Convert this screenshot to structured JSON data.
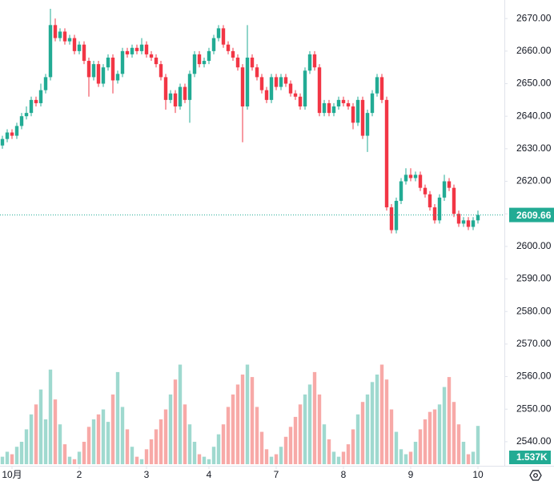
{
  "chart_data": {
    "type": "candlestick",
    "xlim": [
      -0.5,
      104.5
    ],
    "ylim": [
      2532.6,
      2675.7
    ],
    "yticks": [
      {
        "value": 2670,
        "label": "2670.00"
      },
      {
        "value": 2660,
        "label": "2660.00"
      },
      {
        "value": 2650,
        "label": "2650.00"
      },
      {
        "value": 2640,
        "label": "2640.00"
      },
      {
        "value": 2630,
        "label": "2630.00"
      },
      {
        "value": 2620,
        "label": "2620.00"
      },
      {
        "value": 2610,
        "label": "2610.00"
      },
      {
        "value": 2600,
        "label": "2600.00"
      },
      {
        "value": 2590,
        "label": "2590.00"
      },
      {
        "value": 2580,
        "label": "2580.00"
      },
      {
        "value": 2570,
        "label": "2570.00"
      },
      {
        "value": 2560,
        "label": "2560.00"
      },
      {
        "value": 2550,
        "label": "2550.00"
      },
      {
        "value": 2540,
        "label": "2540.00"
      }
    ],
    "xticks": [
      {
        "value": 2,
        "label": "10月"
      },
      {
        "value": 16,
        "label": "2"
      },
      {
        "value": 30,
        "label": "3"
      },
      {
        "value": 43,
        "label": "4"
      },
      {
        "value": 57,
        "label": "7"
      },
      {
        "value": 71,
        "label": "8"
      },
      {
        "value": 85,
        "label": "9"
      },
      {
        "value": 99,
        "label": "10"
      }
    ],
    "grid": false,
    "up_color": "#22ab94",
    "down_color": "#f23645",
    "up_volume_color": "#9fd9cf",
    "down_volume_color": "#f7a9a7",
    "open": [
      2631,
      2633,
      2635,
      2634,
      2637,
      2640,
      2641,
      2645,
      2644,
      2648,
      2652,
      2668,
      2664,
      2666,
      2663,
      2664,
      2660,
      2662,
      2657,
      2652,
      2656,
      2650,
      2655,
      2658,
      2651,
      2653,
      2660,
      2659,
      2661,
      2660,
      2662,
      2659,
      2658,
      2656,
      2652,
      2645,
      2647,
      2643,
      2649,
      2645,
      2653,
      2659,
      2656,
      2657,
      2660,
      2664,
      2667,
      2662,
      2660,
      2658,
      2655,
      2643,
      2658,
      2655,
      2652,
      2648,
      2645,
      2652,
      2649,
      2652,
      2650,
      2647,
      2646,
      2643,
      2654,
      2659,
      2655,
      2641,
      2644,
      2641,
      2643,
      2645,
      2644,
      2643,
      2638,
      2645,
      2634,
      2641,
      2647,
      2652,
      2645,
      2612,
      2605,
      2614,
      2620,
      2622,
      2621,
      2622,
      2618,
      2616,
      2612,
      2608,
      2615,
      2620,
      2618,
      2610,
      2607,
      2608,
      2606,
      2608
    ],
    "high": [
      2634,
      2636,
      2636,
      2638,
      2641,
      2643,
      2646,
      2646,
      2650,
      2653,
      2673,
      2670,
      2667,
      2667,
      2665,
      2665,
      2663,
      2663,
      2658,
      2657,
      2657,
      2656,
      2659,
      2659,
      2654,
      2661,
      2661,
      2662,
      2662,
      2664,
      2663,
      2660,
      2659,
      2657,
      2653,
      2648,
      2648,
      2650,
      2650,
      2654,
      2660,
      2660,
      2658,
      2661,
      2665,
      2668,
      2668,
      2663,
      2661,
      2659,
      2656,
      2668,
      2659,
      2656,
      2653,
      2649,
      2653,
      2653,
      2653,
      2653,
      2651,
      2648,
      2647,
      2655,
      2660,
      2660,
      2656,
      2645,
      2645,
      2644,
      2646,
      2646,
      2645,
      2644,
      2646,
      2646,
      2642,
      2648,
      2653,
      2653,
      2646,
      2613,
      2615,
      2621,
      2624,
      2624,
      2623,
      2623,
      2619,
      2617,
      2613,
      2616,
      2622,
      2621,
      2619,
      2611,
      2609,
      2609,
      2609,
      2611
    ],
    "low": [
      2630,
      2632,
      2633,
      2633,
      2636,
      2639,
      2640,
      2643,
      2643,
      2647,
      2651,
      2663,
      2663,
      2662,
      2662,
      2659,
      2659,
      2656,
      2646,
      2651,
      2649,
      2649,
      2654,
      2647,
      2650,
      2652,
      2658,
      2658,
      2659,
      2659,
      2658,
      2657,
      2655,
      2651,
      2642,
      2644,
      2641,
      2642,
      2644,
      2638,
      2652,
      2655,
      2655,
      2656,
      2659,
      2663,
      2661,
      2659,
      2657,
      2654,
      2632,
      2642,
      2654,
      2651,
      2647,
      2644,
      2644,
      2648,
      2648,
      2649,
      2646,
      2645,
      2642,
      2642,
      2653,
      2654,
      2640,
      2640,
      2640,
      2640,
      2642,
      2643,
      2642,
      2636,
      2637,
      2633,
      2629,
      2640,
      2646,
      2644,
      2611,
      2604,
      2604,
      2613,
      2619,
      2620,
      2620,
      2617,
      2615,
      2611,
      2607,
      2607,
      2614,
      2617,
      2609,
      2606,
      2606,
      2605,
      2605,
      2607
    ],
    "close": [
      2633,
      2635,
      2634,
      2637,
      2640,
      2641,
      2645,
      2644,
      2648,
      2652,
      2668,
      2664,
      2666,
      2663,
      2664,
      2660,
      2662,
      2657,
      2652,
      2656,
      2650,
      2655,
      2658,
      2651,
      2653,
      2660,
      2659,
      2661,
      2660,
      2662,
      2659,
      2658,
      2656,
      2652,
      2645,
      2647,
      2643,
      2649,
      2645,
      2653,
      2659,
      2656,
      2657,
      2660,
      2664,
      2667,
      2662,
      2660,
      2658,
      2655,
      2643,
      2658,
      2655,
      2652,
      2648,
      2645,
      2652,
      2649,
      2652,
      2650,
      2647,
      2646,
      2643,
      2654,
      2659,
      2655,
      2641,
      2644,
      2641,
      2643,
      2645,
      2644,
      2643,
      2638,
      2645,
      2634,
      2641,
      2647,
      2652,
      2645,
      2612,
      2605,
      2614,
      2620,
      2622,
      2621,
      2622,
      2618,
      2616,
      2612,
      2608,
      2615,
      2620,
      2618,
      2610,
      2607,
      2608,
      2606,
      2608,
      2609.66
    ],
    "volume": {
      "vlim": [
        0,
        4500
      ],
      "values": [
        300,
        500,
        400,
        700,
        900,
        1400,
        2000,
        2400,
        3000,
        1800,
        3800,
        2600,
        1600,
        800,
        300,
        200,
        500,
        900,
        1500,
        1800,
        2000,
        2200,
        1700,
        2800,
        3700,
        2300,
        1400,
        700,
        300,
        200,
        600,
        1000,
        1400,
        1800,
        2200,
        2800,
        3400,
        4000,
        2400,
        1600,
        900,
        400,
        300,
        200,
        700,
        1200,
        1600,
        2300,
        2800,
        3200,
        3600,
        4000,
        3500,
        2300,
        1300,
        600,
        300,
        400,
        700,
        1100,
        1500,
        1900,
        2400,
        2800,
        3200,
        3700,
        2800,
        1600,
        1000,
        500,
        300,
        500,
        800,
        1400,
        2000,
        2500,
        2800,
        3300,
        3600,
        4000,
        3400,
        2200,
        1300,
        600,
        400,
        500,
        900,
        1400,
        1800,
        2100,
        2200,
        2400,
        3100,
        3500,
        2500,
        1600,
        900,
        400,
        500,
        1537
      ],
      "last_value_label": "1.537K"
    }
  }
}
